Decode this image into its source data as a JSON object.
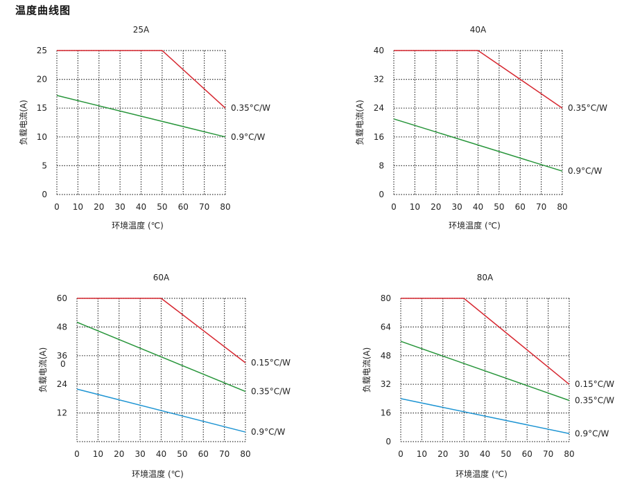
{
  "page_title": "温度曲线图",
  "colors": {
    "red": "#d6262f",
    "green": "#27953a",
    "blue": "#1f95d3",
    "grid": "#333333"
  },
  "chart_data": [
    {
      "type": "line",
      "title": "25A",
      "xlabel": "环境温度 (℃)",
      "ylabel": "负载电流(A)",
      "xlim": [
        0,
        80
      ],
      "ylim": [
        0,
        25
      ],
      "xticks": [
        "0",
        "10",
        "20",
        "30",
        "40",
        "50",
        "60",
        "70",
        "80"
      ],
      "yticks": [
        "0",
        "5",
        "10",
        "15",
        "20",
        "25"
      ],
      "series": [
        {
          "name": "0.35°C/W",
          "color": "red",
          "x": [
            0,
            50,
            80
          ],
          "y": [
            25,
            25,
            15
          ]
        },
        {
          "name": "0.9°C/W",
          "color": "green",
          "x": [
            0,
            80
          ],
          "y": [
            17.2,
            10
          ]
        }
      ]
    },
    {
      "type": "line",
      "title": "40A",
      "xlabel": "环境温度 (℃)",
      "ylabel": "负载电流(A)",
      "xlim": [
        0,
        80
      ],
      "ylim": [
        0,
        40
      ],
      "xticks": [
        "0",
        "10",
        "20",
        "30",
        "40",
        "50",
        "60",
        "70",
        "80"
      ],
      "yticks": [
        "0",
        "8",
        "16",
        "24",
        "32",
        "40"
      ],
      "series": [
        {
          "name": "0.35°C/W",
          "color": "red",
          "x": [
            0,
            40,
            80
          ],
          "y": [
            40,
            40,
            24
          ]
        },
        {
          "name": "0.9°C/W",
          "color": "green",
          "x": [
            0,
            80
          ],
          "y": [
            21,
            6.5
          ]
        }
      ]
    },
    {
      "type": "line",
      "title": "60A",
      "xlabel": "",
      "ylabel": "负载电流(A)",
      "xlim": [
        0,
        80
      ],
      "ylim": [
        0,
        60
      ],
      "xticks": [
        "0",
        "10",
        "20",
        "30",
        "40",
        "50",
        "60",
        "70",
        "80"
      ],
      "yticks": [
        "12",
        "24",
        "36",
        "48",
        "60"
      ],
      "extra_tick": "0",
      "series": [
        {
          "name": "0.15°C/W",
          "color": "red",
          "x": [
            0,
            40,
            80
          ],
          "y": [
            60,
            60,
            33
          ]
        },
        {
          "name": "0.35°C/W",
          "color": "green",
          "x": [
            0,
            80
          ],
          "y": [
            50,
            21
          ]
        },
        {
          "name": "0.9°C/W",
          "color": "blue",
          "x": [
            0,
            80
          ],
          "y": [
            22,
            4
          ]
        }
      ]
    },
    {
      "type": "line",
      "title": "80A",
      "xlabel": "环境温度 (℃)",
      "ylabel": "负载电流(A)",
      "xlim": [
        0,
        80
      ],
      "ylim": [
        0,
        80
      ],
      "xticks": [
        "0",
        "10",
        "20",
        "30",
        "40",
        "50",
        "60",
        "70",
        "80"
      ],
      "yticks": [
        "0",
        "16",
        "32",
        "48",
        "64",
        "80"
      ],
      "series": [
        {
          "name": "0.15°C/W",
          "color": "red",
          "x": [
            0,
            30,
            80
          ],
          "y": [
            80,
            80,
            32
          ]
        },
        {
          "name": "0.35°C/W",
          "color": "green",
          "x": [
            0,
            80
          ],
          "y": [
            56,
            23
          ]
        },
        {
          "name": "0.9°C/W",
          "color": "blue",
          "x": [
            0,
            80
          ],
          "y": [
            24,
            4.5
          ]
        }
      ]
    }
  ],
  "bottom_left_xlabel": "环境温度 (℃)"
}
